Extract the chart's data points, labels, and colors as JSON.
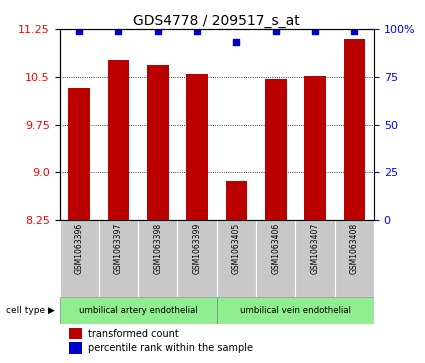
{
  "title": "GDS4778 / 209517_s_at",
  "samples": [
    "GSM1063396",
    "GSM1063397",
    "GSM1063398",
    "GSM1063399",
    "GSM1063405",
    "GSM1063406",
    "GSM1063407",
    "GSM1063408"
  ],
  "bar_values": [
    10.32,
    10.76,
    10.68,
    10.55,
    8.87,
    10.47,
    10.52,
    11.1
  ],
  "percentile_values": [
    99,
    99,
    99,
    99,
    93,
    99,
    99,
    99
  ],
  "ylim_left": [
    8.25,
    11.25
  ],
  "yticks_left": [
    8.25,
    9.0,
    9.75,
    10.5,
    11.25
  ],
  "yticks_right": [
    0,
    25,
    50,
    75,
    100
  ],
  "bar_color": "#bb0000",
  "percentile_color": "#0000cc",
  "grid_color": "#000000",
  "bg_color": "#ffffff",
  "sample_box_color": "#c8c8c8",
  "green_color": "#90ee90",
  "groups": [
    {
      "label": "umbilical artery endothelial",
      "indices": [
        0,
        1,
        2,
        3
      ]
    },
    {
      "label": "umbilical vein endothelial",
      "indices": [
        4,
        5,
        6,
        7
      ]
    }
  ],
  "cell_type_label": "cell type",
  "legend_red": "transformed count",
  "legend_blue": "percentile rank within the sample",
  "bar_width": 0.55,
  "title_fontsize": 10,
  "tick_fontsize": 8,
  "label_fontsize": 7,
  "legend_fontsize": 7
}
